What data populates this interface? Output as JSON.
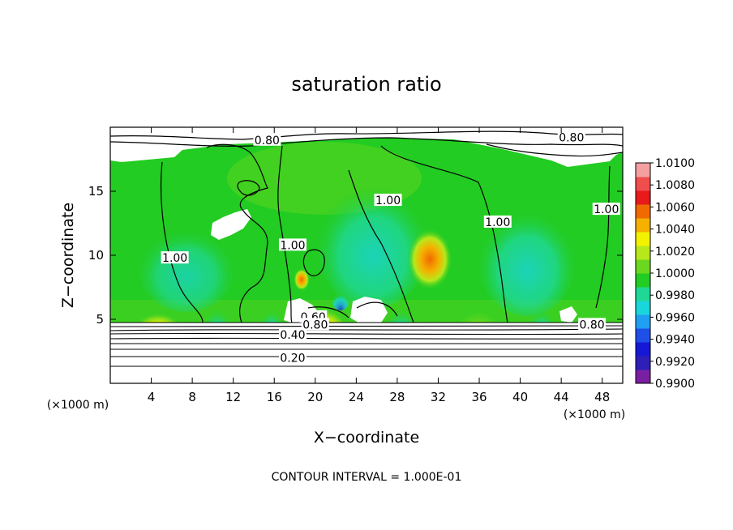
{
  "chart_data": {
    "type": "heatmap",
    "title": "saturation ratio",
    "xlabel": "X−coordinate",
    "ylabel": "Z−coordinate",
    "x_unit": "(×1000 m)",
    "y_unit": "(×1000 m)",
    "xlim": [
      0,
      50
    ],
    "ylim": [
      0,
      20
    ],
    "x_ticks": [
      4,
      8,
      12,
      16,
      20,
      24,
      28,
      32,
      36,
      40,
      44,
      48
    ],
    "y_ticks": [
      5,
      10,
      15
    ],
    "footer": "CONTOUR INTERVAL = 1.000E-01",
    "colorbar": {
      "min": 0.99,
      "max": 1.01,
      "labels": [
        "1.0100",
        "1.0080",
        "1.0060",
        "1.0040",
        "1.0020",
        "1.0000",
        "0.9980",
        "0.9960",
        "0.9940",
        "0.9920",
        "0.9900"
      ],
      "colors": [
        "#7b1fa2",
        "#2e1fb8",
        "#1717d6",
        "#1f4fe8",
        "#1f9ff2",
        "#19d6dc",
        "#1fd896",
        "#22cc22",
        "#6bd81f",
        "#b8e81c",
        "#f2f200",
        "#f5b000",
        "#f06a00",
        "#e81a1a",
        "#f04d4d",
        "#f5a0a0"
      ]
    },
    "contour_labels": [
      {
        "text": "0.80",
        "x": 15.3,
        "y": 19.0
      },
      {
        "text": "0.80",
        "x": 45.0,
        "y": 19.2
      },
      {
        "text": "1.00",
        "x": 6.3,
        "y": 9.8
      },
      {
        "text": "1.00",
        "x": 17.8,
        "y": 10.8
      },
      {
        "text": "1.00",
        "x": 27.1,
        "y": 14.3
      },
      {
        "text": "1.00",
        "x": 37.8,
        "y": 12.6
      },
      {
        "text": "1.00",
        "x": 48.4,
        "y": 13.6
      },
      {
        "text": "0.60",
        "x": 19.8,
        "y": 5.2
      },
      {
        "text": "0.40",
        "x": 17.8,
        "y": 3.8
      },
      {
        "text": "0.80",
        "x": 47.0,
        "y": 4.6
      },
      {
        "text": "0.20",
        "x": 17.8,
        "y": 2.0
      },
      {
        "text": "0.80",
        "x": 20.0,
        "y": 4.6
      }
    ]
  }
}
